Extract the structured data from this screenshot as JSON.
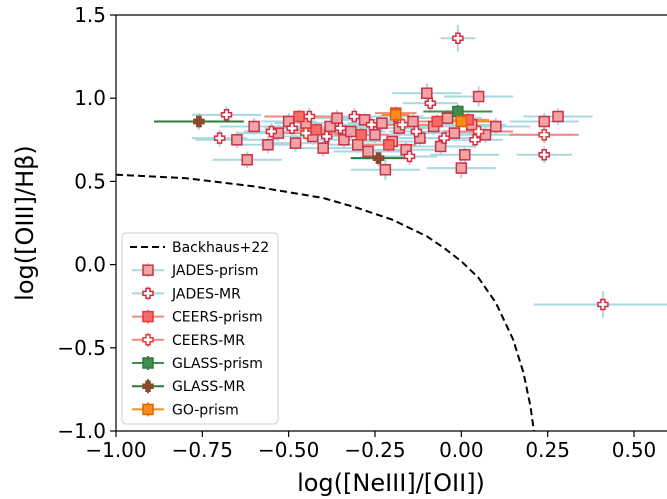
{
  "chart_data": {
    "type": "scatter",
    "xlabel": "log([NeIII]/[OII])",
    "ylabel": "log([OIII]/Hβ)",
    "xlim": [
      -1.0,
      0.6
    ],
    "ylim": [
      -1.0,
      1.5
    ],
    "xticks": [
      "−1.00",
      "−0.75",
      "−0.50",
      "−0.25",
      "0.00",
      "0.25",
      "0.50"
    ],
    "xtick_values": [
      -1.0,
      -0.75,
      -0.5,
      -0.25,
      0.0,
      0.25,
      0.5
    ],
    "yticks": [
      "−1.0",
      "−0.5",
      "0.0",
      "0.5",
      "1.0",
      "1.5"
    ],
    "ytick_values": [
      -1.0,
      -0.5,
      0.0,
      0.5,
      1.0,
      1.5
    ],
    "grid": false,
    "legend_position": "lower-left",
    "curve": {
      "name": "Backhaus+22",
      "style": "dashed",
      "color": "#000000",
      "x": [
        -1.0,
        -0.8,
        -0.6,
        -0.4,
        -0.3,
        -0.2,
        -0.1,
        -0.05,
        0.0,
        0.05,
        0.1,
        0.15,
        0.18,
        0.2,
        0.21
      ],
      "y": [
        0.54,
        0.52,
        0.47,
        0.4,
        0.34,
        0.27,
        0.17,
        0.1,
        0.02,
        -0.08,
        -0.23,
        -0.45,
        -0.65,
        -0.85,
        -1.0
      ]
    },
    "series": [
      {
        "name": "JADES-prism",
        "marker": "square",
        "face": "#f2a3a3",
        "edge": "#c9304b",
        "errcolor": "#a8d8e0",
        "points": [
          {
            "x": -0.65,
            "y": 0.75,
            "xerr": 0.12,
            "yerr": 0.05
          },
          {
            "x": -0.62,
            "y": 0.63,
            "xerr": 0.1,
            "yerr": 0.05
          },
          {
            "x": -0.6,
            "y": 0.83,
            "xerr": 0.1,
            "yerr": 0.05
          },
          {
            "x": -0.56,
            "y": 0.72,
            "xerr": 0.1,
            "yerr": 0.05
          },
          {
            "x": -0.53,
            "y": 0.79,
            "xerr": 0.12,
            "yerr": 0.05
          },
          {
            "x": -0.5,
            "y": 0.86,
            "xerr": 0.08,
            "yerr": 0.05
          },
          {
            "x": -0.48,
            "y": 0.73,
            "xerr": 0.1,
            "yerr": 0.05
          },
          {
            "x": -0.45,
            "y": 0.85,
            "xerr": 0.09,
            "yerr": 0.04
          },
          {
            "x": -0.43,
            "y": 0.77,
            "xerr": 0.1,
            "yerr": 0.05
          },
          {
            "x": -0.4,
            "y": 0.7,
            "xerr": 0.1,
            "yerr": 0.05
          },
          {
            "x": -0.38,
            "y": 0.83,
            "xerr": 0.1,
            "yerr": 0.05
          },
          {
            "x": -0.36,
            "y": 0.88,
            "xerr": 0.08,
            "yerr": 0.05
          },
          {
            "x": -0.34,
            "y": 0.75,
            "xerr": 0.1,
            "yerr": 0.05
          },
          {
            "x": -0.32,
            "y": 0.8,
            "xerr": 0.1,
            "yerr": 0.05
          },
          {
            "x": -0.3,
            "y": 0.72,
            "xerr": 0.1,
            "yerr": 0.05
          },
          {
            "x": -0.28,
            "y": 0.87,
            "xerr": 0.08,
            "yerr": 0.04
          },
          {
            "x": -0.27,
            "y": 0.68,
            "xerr": 0.1,
            "yerr": 0.05
          },
          {
            "x": -0.25,
            "y": 0.78,
            "xerr": 0.12,
            "yerr": 0.05
          },
          {
            "x": -0.23,
            "y": 0.85,
            "xerr": 0.1,
            "yerr": 0.05
          },
          {
            "x": -0.22,
            "y": 0.57,
            "xerr": 0.1,
            "yerr": 0.06
          },
          {
            "x": -0.2,
            "y": 0.74,
            "xerr": 0.1,
            "yerr": 0.05
          },
          {
            "x": -0.18,
            "y": 0.82,
            "xerr": 0.1,
            "yerr": 0.05
          },
          {
            "x": -0.16,
            "y": 0.69,
            "xerr": 0.1,
            "yerr": 0.05
          },
          {
            "x": -0.14,
            "y": 0.86,
            "xerr": 0.1,
            "yerr": 0.05
          },
          {
            "x": -0.12,
            "y": 0.76,
            "xerr": 0.1,
            "yerr": 0.05
          },
          {
            "x": -0.1,
            "y": 1.03,
            "xerr": 0.1,
            "yerr": 0.06
          },
          {
            "x": -0.08,
            "y": 0.83,
            "xerr": 0.1,
            "yerr": 0.05
          },
          {
            "x": -0.06,
            "y": 0.71,
            "xerr": 0.1,
            "yerr": 0.05
          },
          {
            "x": -0.04,
            "y": 0.88,
            "xerr": 0.1,
            "yerr": 0.05
          },
          {
            "x": -0.02,
            "y": 0.79,
            "xerr": 0.1,
            "yerr": 0.05
          },
          {
            "x": 0.0,
            "y": 0.58,
            "xerr": 0.1,
            "yerr": 0.06
          },
          {
            "x": 0.01,
            "y": 0.66,
            "xerr": 0.1,
            "yerr": 0.05
          },
          {
            "x": 0.03,
            "y": 0.84,
            "xerr": 0.1,
            "yerr": 0.05
          },
          {
            "x": 0.05,
            "y": 1.01,
            "xerr": 0.1,
            "yerr": 0.06
          },
          {
            "x": 0.07,
            "y": 0.78,
            "xerr": 0.1,
            "yerr": 0.05
          },
          {
            "x": 0.1,
            "y": 0.83,
            "xerr": 0.1,
            "yerr": 0.05
          },
          {
            "x": 0.24,
            "y": 0.86,
            "xerr": 0.1,
            "yerr": 0.05
          },
          {
            "x": 0.28,
            "y": 0.89,
            "xerr": 0.1,
            "yerr": 0.05
          }
        ]
      },
      {
        "name": "JADES-MR",
        "marker": "plus",
        "face": "#ffffff",
        "edge": "#d9283f",
        "errcolor": "#a8d8e0",
        "points": [
          {
            "x": -0.76,
            "y": 0.86,
            "xerr": 0.08,
            "yerr": 0.05
          },
          {
            "x": -0.68,
            "y": 0.9,
            "xerr": 0.1,
            "yerr": 0.05
          },
          {
            "x": -0.7,
            "y": 0.76,
            "xerr": 0.08,
            "yerr": 0.05
          },
          {
            "x": -0.55,
            "y": 0.8,
            "xerr": 0.08,
            "yerr": 0.05
          },
          {
            "x": -0.49,
            "y": 0.82,
            "xerr": 0.08,
            "yerr": 0.05
          },
          {
            "x": -0.44,
            "y": 0.89,
            "xerr": 0.08,
            "yerr": 0.05
          },
          {
            "x": -0.39,
            "y": 0.77,
            "xerr": 0.08,
            "yerr": 0.05
          },
          {
            "x": -0.35,
            "y": 0.82,
            "xerr": 0.08,
            "yerr": 0.05
          },
          {
            "x": -0.31,
            "y": 0.89,
            "xerr": 0.08,
            "yerr": 0.05
          },
          {
            "x": -0.26,
            "y": 0.84,
            "xerr": 0.08,
            "yerr": 0.05
          },
          {
            "x": -0.24,
            "y": 0.64,
            "xerr": 0.08,
            "yerr": 0.05
          },
          {
            "x": -0.19,
            "y": 0.89,
            "xerr": 0.08,
            "yerr": 0.05
          },
          {
            "x": -0.15,
            "y": 0.65,
            "xerr": 0.08,
            "yerr": 0.05
          },
          {
            "x": -0.13,
            "y": 0.8,
            "xerr": 0.08,
            "yerr": 0.05
          },
          {
            "x": -0.09,
            "y": 0.97,
            "xerr": 0.08,
            "yerr": 0.05
          },
          {
            "x": -0.05,
            "y": 0.76,
            "xerr": 0.08,
            "yerr": 0.05
          },
          {
            "x": -0.01,
            "y": 1.36,
            "xerr": 0.05,
            "yerr": 0.08
          },
          {
            "x": 0.04,
            "y": 0.75,
            "xerr": 0.08,
            "yerr": 0.05
          },
          {
            "x": 0.24,
            "y": 0.66,
            "xerr": 0.08,
            "yerr": 0.05
          },
          {
            "x": 0.24,
            "y": 0.78,
            "xerr": 0.08,
            "yerr": 0.05
          },
          {
            "x": 0.41,
            "y": -0.24,
            "xerr": 0.2,
            "yerr": 0.08
          }
        ]
      },
      {
        "name": "CEERS-prism",
        "marker": "square",
        "face": "#f56b6b",
        "edge": "#e33a3a",
        "errcolor": "#f08a80",
        "points": [
          {
            "x": -0.47,
            "y": 0.89,
            "xerr": 0.1,
            "yerr": 0.04
          },
          {
            "x": -0.42,
            "y": 0.81,
            "xerr": 0.08,
            "yerr": 0.04
          },
          {
            "x": -0.29,
            "y": 0.78,
            "xerr": 0.08,
            "yerr": 0.04
          },
          {
            "x": -0.21,
            "y": 0.72,
            "xerr": 0.08,
            "yerr": 0.04
          },
          {
            "x": -0.19,
            "y": 0.91,
            "xerr": 0.06,
            "yerr": 0.04
          },
          {
            "x": -0.07,
            "y": 0.86,
            "xerr": 0.08,
            "yerr": 0.04
          },
          {
            "x": 0.02,
            "y": 0.87,
            "xerr": 0.06,
            "yerr": 0.04
          }
        ]
      },
      {
        "name": "CEERS-MR",
        "marker": "plus",
        "face": "#ffffff",
        "edge": "#e33a3a",
        "errcolor": "#f08a80",
        "points": [
          {
            "x": -0.45,
            "y": 0.79,
            "xerr": 0.1,
            "yerr": 0.04
          },
          {
            "x": -0.17,
            "y": 0.84,
            "xerr": 0.1,
            "yerr": 0.04
          },
          {
            "x": 0.05,
            "y": 0.8,
            "xerr": 0.1,
            "yerr": 0.04
          },
          {
            "x": 0.24,
            "y": 0.78,
            "xerr": 0.1,
            "yerr": 0.04
          }
        ]
      },
      {
        "name": "GLASS-prism",
        "marker": "square",
        "face": "#3f8e4e",
        "edge": "#2f7a3e",
        "errcolor": "#3f8e4e",
        "points": [
          {
            "x": -0.01,
            "y": 0.92,
            "xerr": 0.1,
            "yerr": 0.04
          }
        ]
      },
      {
        "name": "GLASS-MR",
        "marker": "plus",
        "face": "#8b4a2b",
        "edge": "#8b4a2b",
        "errcolor": "#2f7a3e",
        "points": [
          {
            "x": -0.76,
            "y": 0.86,
            "xerr": 0.13,
            "yerr": 0.03
          },
          {
            "x": -0.24,
            "y": 0.64,
            "xerr": 0.08,
            "yerr": 0.03
          }
        ]
      },
      {
        "name": "GO-prism",
        "marker": "square",
        "face": "#ff8c1a",
        "edge": "#e06600",
        "errcolor": "#ff8c1a",
        "points": [
          {
            "x": -0.19,
            "y": 0.9,
            "xerr": 0.04,
            "yerr": 0.03
          },
          {
            "x": 0.0,
            "y": 0.86,
            "xerr": 0.1,
            "yerr": 0.03
          }
        ]
      }
    ]
  }
}
